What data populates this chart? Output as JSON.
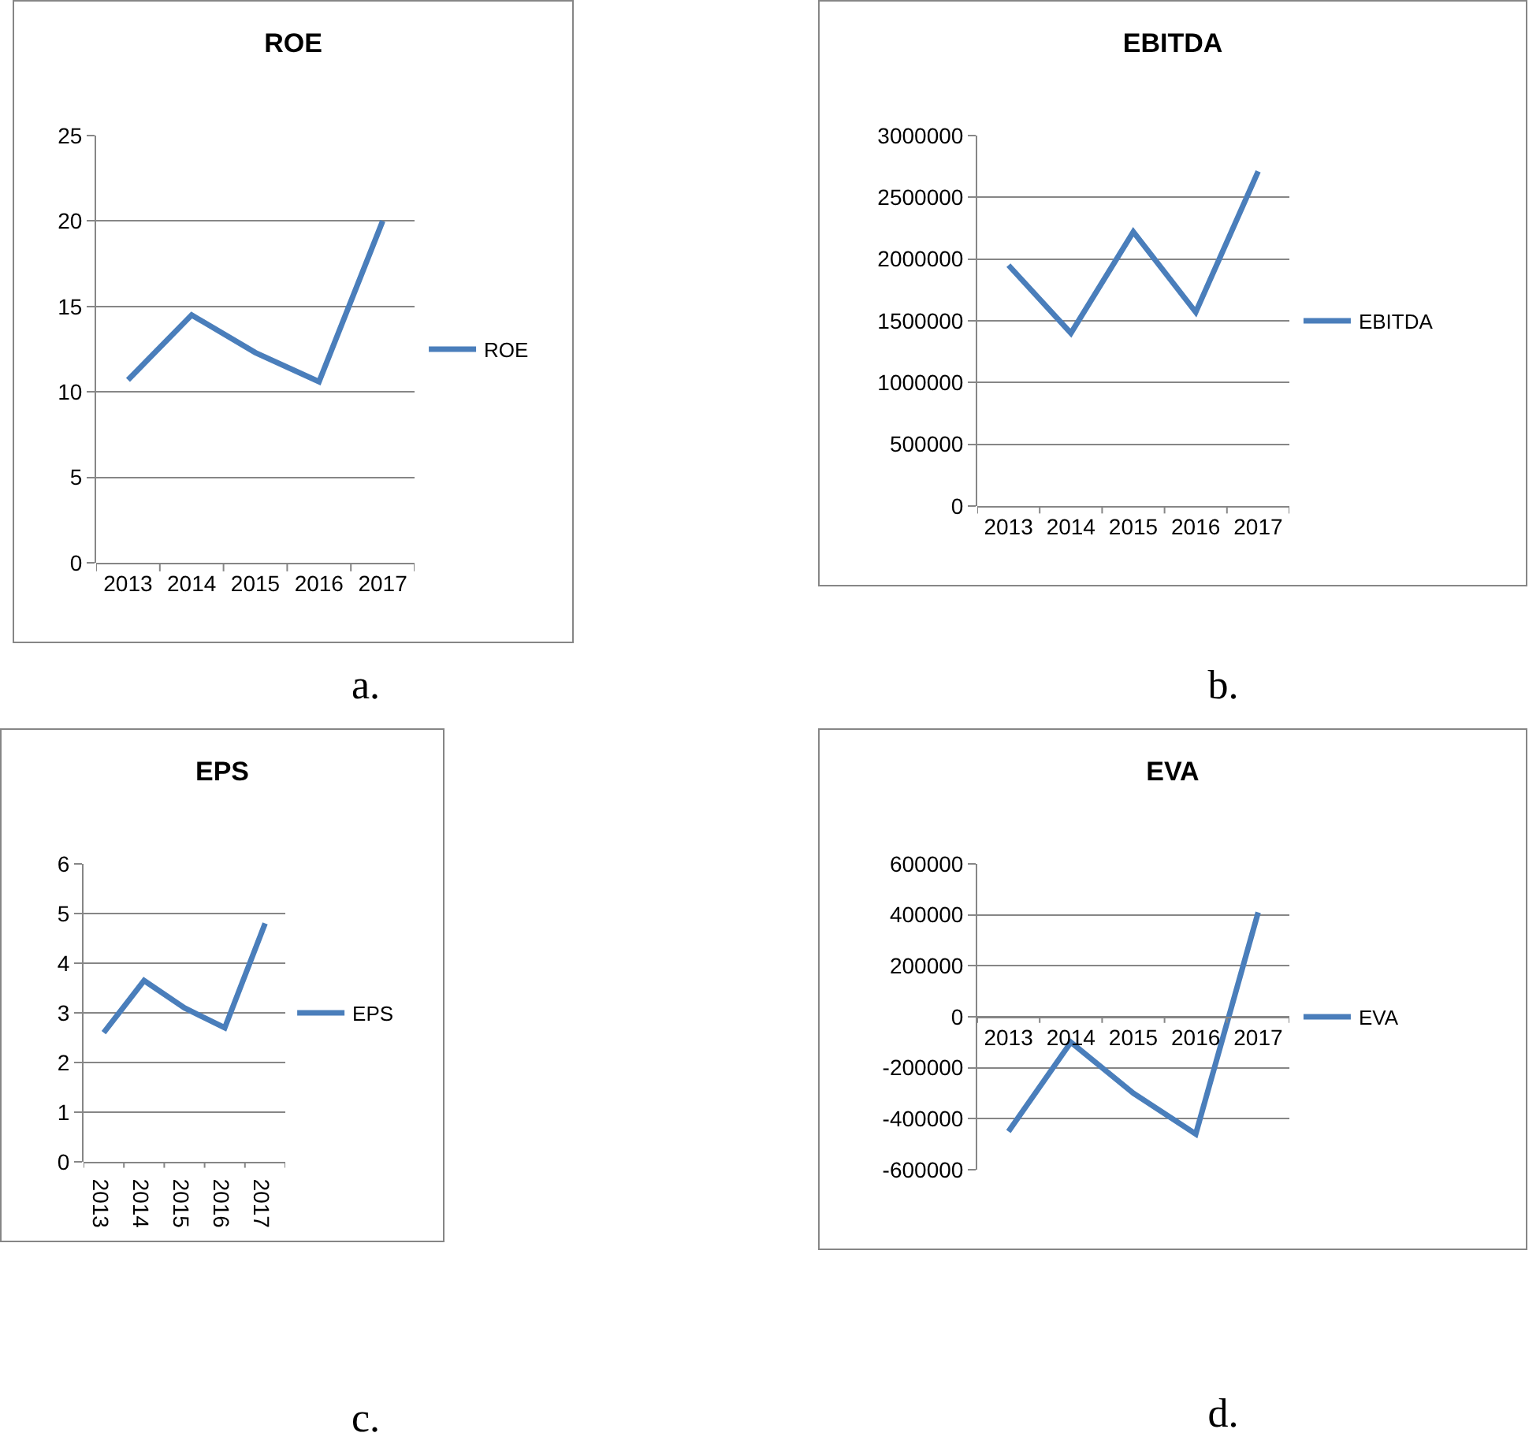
{
  "chart_data": [
    {
      "type": "line",
      "title": "ROE",
      "categories": [
        "2013",
        "2014",
        "2015",
        "2016",
        "2017"
      ],
      "series": [
        {
          "name": "ROE",
          "color": "#4a7ebb",
          "values": [
            10.7,
            14.5,
            12.3,
            10.6,
            20
          ]
        }
      ],
      "ylim": [
        0,
        25
      ],
      "yticks": [
        0,
        5,
        10,
        15,
        20,
        25
      ],
      "grid": "y",
      "legend": "right",
      "annotations": [
        "a."
      ]
    },
    {
      "type": "line",
      "title": "EBITDA",
      "categories": [
        "2013",
        "2014",
        "2015",
        "2016",
        "2017"
      ],
      "series": [
        {
          "name": "EBITDA",
          "color": "#4a7ebb",
          "values": [
            1950000,
            1400000,
            2220000,
            1570000,
            2710000
          ]
        }
      ],
      "ylim": [
        0,
        3000000
      ],
      "yticks": [
        0,
        500000,
        1000000,
        1500000,
        2000000,
        2500000,
        3000000
      ],
      "grid": "y",
      "legend": "right",
      "annotations": [
        "b."
      ]
    },
    {
      "type": "line",
      "title": "EPS",
      "categories": [
        "2013",
        "2014",
        "2015",
        "2016",
        "2017"
      ],
      "series": [
        {
          "name": "EPS",
          "color": "#4a7ebb",
          "values": [
            2.6,
            3.65,
            3.1,
            2.7,
            4.8
          ]
        }
      ],
      "ylim": [
        0,
        6
      ],
      "yticks": [
        0,
        1,
        2,
        3,
        4,
        5,
        6
      ],
      "grid": "y",
      "legend": "right",
      "annotations": [
        "c."
      ]
    },
    {
      "type": "line",
      "title": "EVA",
      "categories": [
        "2013",
        "2014",
        "2015",
        "2016",
        "2017"
      ],
      "series": [
        {
          "name": "EVA",
          "color": "#4a7ebb",
          "values": [
            -450000,
            -100000,
            -300000,
            -460000,
            410000
          ]
        }
      ],
      "ylim": [
        -600000,
        600000
      ],
      "yticks": [
        -600000,
        -400000,
        -200000,
        0,
        200000,
        400000,
        600000
      ],
      "grid": "y",
      "legend": "right",
      "annotations": [
        "d."
      ]
    }
  ]
}
